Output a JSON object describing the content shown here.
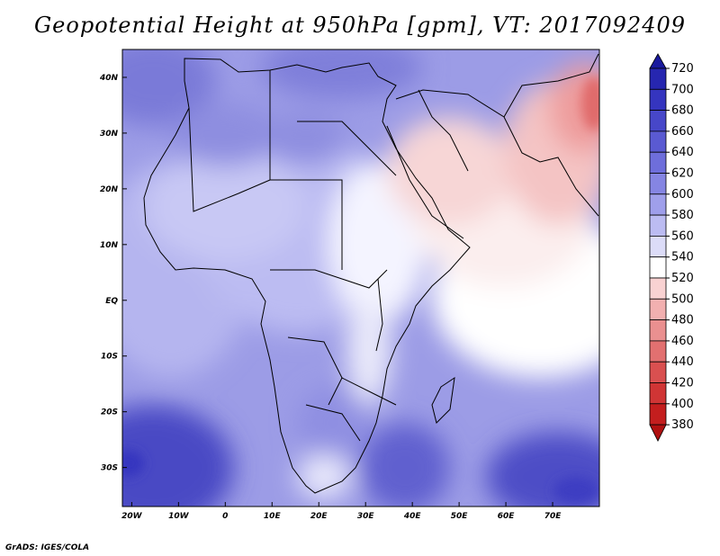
{
  "title": "Geopotential Height at 950hPa [gpm], VT: 2017092409",
  "credit": "GrADS: IGES/COLA",
  "map": {
    "x_ticks": [
      {
        "value": -20,
        "label": "20W"
      },
      {
        "value": -10,
        "label": "10W"
      },
      {
        "value": 0,
        "label": "0"
      },
      {
        "value": 10,
        "label": "10E"
      },
      {
        "value": 20,
        "label": "20E"
      },
      {
        "value": 30,
        "label": "30E"
      },
      {
        "value": 40,
        "label": "40E"
      },
      {
        "value": 50,
        "label": "50E"
      },
      {
        "value": 60,
        "label": "60E"
      },
      {
        "value": 70,
        "label": "70E"
      }
    ],
    "y_ticks": [
      {
        "value": 40,
        "label": "40N"
      },
      {
        "value": 30,
        "label": "30N"
      },
      {
        "value": 20,
        "label": "20N"
      },
      {
        "value": 10,
        "label": "10N"
      },
      {
        "value": 0,
        "label": "EQ"
      },
      {
        "value": -10,
        "label": "10S"
      },
      {
        "value": -20,
        "label": "20S"
      },
      {
        "value": -30,
        "label": "30S"
      }
    ],
    "lon_range": [
      -22,
      80
    ],
    "lat_range": [
      -37,
      45
    ]
  },
  "colorbar": {
    "labels": [
      "720",
      "700",
      "680",
      "660",
      "640",
      "620",
      "600",
      "580",
      "560",
      "540",
      "520",
      "500",
      "480",
      "460",
      "440",
      "420",
      "400",
      "380"
    ],
    "colors": [
      "#1a1a9e",
      "#2626b0",
      "#3535bf",
      "#4747c9",
      "#5a5ad2",
      "#6e6edb",
      "#8585e3",
      "#9f9feb",
      "#bcbcf2",
      "#dcdcf8",
      "#ffffff",
      "#f9d2d2",
      "#f2b0b0",
      "#ea9090",
      "#e27070",
      "#d95050",
      "#d03535",
      "#c41e1e",
      "#b01010"
    ]
  }
}
